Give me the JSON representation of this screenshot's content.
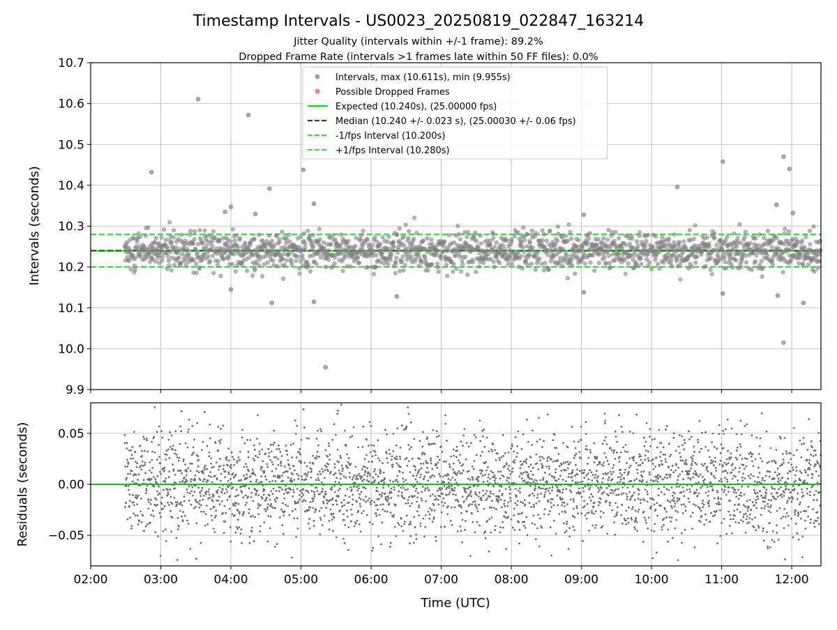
{
  "chart_data": [
    {
      "type": "scatter",
      "title": "Timestamp Intervals - US0023_20250819_022847_163214",
      "subtitle_lines": [
        "Jitter Quality (intervals within +/-1 frame): 89.2%",
        "Dropped Frame Rate (intervals >1 frames late within 50 FF files): 0.0%"
      ],
      "xlabel": "",
      "ylabel": "Intervals (seconds)",
      "xlim": [
        "02:00",
        "12:25"
      ],
      "ylim": [
        9.9,
        10.7
      ],
      "yticks": [
        "9.9",
        "10.0",
        "10.1",
        "10.2",
        "10.3",
        "10.4",
        "10.5",
        "10.6",
        "10.7"
      ],
      "grid": true,
      "legend": {
        "placement": "top-center",
        "entries": [
          {
            "label": "Intervals, max (10.611s), min (9.955s)",
            "kind": "marker",
            "color": "#808080"
          },
          {
            "label": "Possible Dropped Frames",
            "kind": "marker",
            "color": "#ff5555"
          },
          {
            "label": "Expected (10.240s), (25.00000 fps)",
            "kind": "solid",
            "color": "#00ee00"
          },
          {
            "label": "Median (10.240 +/- 0.023 s), (25.00030 +/- 0.06 fps)",
            "kind": "dashed",
            "color": "#006400"
          },
          {
            "label": "-1/fps Interval (10.200s)",
            "kind": "dashed",
            "color": "#22ee22"
          },
          {
            "label": "+1/fps Interval (10.280s)",
            "kind": "dashed",
            "color": "#22ee22"
          }
        ]
      },
      "reference_lines": [
        {
          "name": "expected",
          "y": 10.24,
          "style": "solid",
          "color": "#00ee00"
        },
        {
          "name": "median",
          "y": 10.24,
          "style": "dashed",
          "color": "#006400"
        },
        {
          "name": "minus-one-fps",
          "y": 10.2,
          "style": "dashed",
          "color": "#22ee22"
        },
        {
          "name": "plus-one-fps",
          "y": 10.28,
          "style": "dashed",
          "color": "#22ee22"
        }
      ],
      "series": [
        {
          "name": "Intervals, max (10.611s), min (9.955s)",
          "color": "#808080",
          "time_range": [
            "02:29",
            "12:25"
          ],
          "count": 3500,
          "typical_range": [
            10.17,
            10.31
          ],
          "notable_points": [
            {
              "x": "02:52",
              "y": 10.432
            },
            {
              "x": "03:32",
              "y": 10.611
            },
            {
              "x": "03:55",
              "y": 10.335
            },
            {
              "x": "04:00",
              "y": 10.347
            },
            {
              "x": "04:00",
              "y": 10.145
            },
            {
              "x": "04:15",
              "y": 10.572
            },
            {
              "x": "04:21",
              "y": 10.33
            },
            {
              "x": "04:33",
              "y": 10.392
            },
            {
              "x": "04:35",
              "y": 10.112
            },
            {
              "x": "05:02",
              "y": 10.438
            },
            {
              "x": "05:11",
              "y": 10.355
            },
            {
              "x": "05:11",
              "y": 10.115
            },
            {
              "x": "05:21",
              "y": 9.955
            },
            {
              "x": "06:22",
              "y": 10.128
            },
            {
              "x": "09:02",
              "y": 10.328
            },
            {
              "x": "09:02",
              "y": 10.138
            },
            {
              "x": "10:22",
              "y": 10.396
            },
            {
              "x": "11:01",
              "y": 10.458
            },
            {
              "x": "11:01",
              "y": 10.135
            },
            {
              "x": "11:47",
              "y": 10.352
            },
            {
              "x": "11:48",
              "y": 10.13
            },
            {
              "x": "11:53",
              "y": 10.47
            },
            {
              "x": "11:53",
              "y": 10.015
            },
            {
              "x": "11:58",
              "y": 10.44
            },
            {
              "x": "12:01",
              "y": 10.332
            },
            {
              "x": "12:10",
              "y": 10.112
            }
          ]
        }
      ]
    },
    {
      "type": "scatter",
      "xlabel": "Time (UTC)",
      "ylabel": "Residuals (seconds)",
      "xlim": [
        "02:00",
        "12:25"
      ],
      "ylim": [
        -0.08,
        0.08
      ],
      "yticks": [
        "−0.05",
        "0.00",
        "0.05"
      ],
      "xticks": [
        "02:00",
        "03:00",
        "04:00",
        "05:00",
        "06:00",
        "07:00",
        "08:00",
        "09:00",
        "10:00",
        "11:00",
        "12:00"
      ],
      "grid": true,
      "reference_lines": [
        {
          "name": "zero",
          "y": 0.0,
          "style": "solid",
          "color": "#00cc00"
        }
      ],
      "series": [
        {
          "name": "residuals",
          "color": "#6e6e6e",
          "time_range": [
            "02:29",
            "12:25"
          ],
          "count": 3500,
          "typical_range": [
            -0.08,
            0.08
          ]
        }
      ]
    }
  ]
}
